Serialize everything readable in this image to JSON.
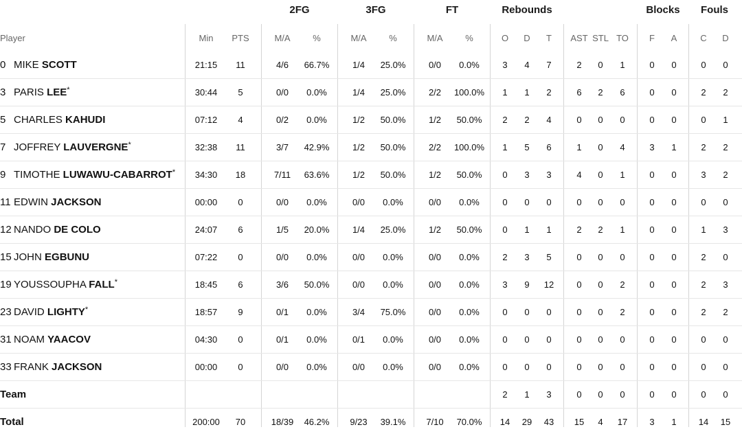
{
  "groups": [
    {
      "key": "fg2",
      "label": "2FG"
    },
    {
      "key": "fg3",
      "label": "3FG"
    },
    {
      "key": "ft",
      "label": "FT"
    },
    {
      "key": "reb",
      "label": "Rebounds"
    },
    {
      "key": "blk",
      "label": "Blocks"
    },
    {
      "key": "fls",
      "label": "Fouls"
    }
  ],
  "columns": [
    "Player",
    "Min",
    "PTS",
    "M/A",
    "%",
    "M/A",
    "%",
    "M/A",
    "%",
    "O",
    "D",
    "T",
    "AST",
    "STL",
    "TO",
    "F",
    "A",
    "C",
    "D"
  ],
  "players": [
    {
      "num": "0",
      "first": "MIKE",
      "last": "SCOTT",
      "star": false,
      "stats": [
        "21:15",
        "11",
        "4/6",
        "66.7%",
        "1/4",
        "25.0%",
        "0/0",
        "0.0%",
        "3",
        "4",
        "7",
        "2",
        "0",
        "1",
        "0",
        "0",
        "0",
        "0"
      ]
    },
    {
      "num": "3",
      "first": "PARIS",
      "last": "LEE",
      "star": true,
      "stats": [
        "30:44",
        "5",
        "0/0",
        "0.0%",
        "1/4",
        "25.0%",
        "2/2",
        "100.0%",
        "1",
        "1",
        "2",
        "6",
        "2",
        "6",
        "0",
        "0",
        "2",
        "2"
      ]
    },
    {
      "num": "5",
      "first": "CHARLES",
      "last": "KAHUDI",
      "star": false,
      "stats": [
        "07:12",
        "4",
        "0/2",
        "0.0%",
        "1/2",
        "50.0%",
        "1/2",
        "50.0%",
        "2",
        "2",
        "4",
        "0",
        "0",
        "0",
        "0",
        "0",
        "0",
        "1"
      ]
    },
    {
      "num": "7",
      "first": "JOFFREY",
      "last": "LAUVERGNE",
      "star": true,
      "stats": [
        "32:38",
        "11",
        "3/7",
        "42.9%",
        "1/2",
        "50.0%",
        "2/2",
        "100.0%",
        "1",
        "5",
        "6",
        "1",
        "0",
        "4",
        "3",
        "1",
        "2",
        "2"
      ]
    },
    {
      "num": "9",
      "first": "TIMOTHE",
      "last": "LUWAWU-CABARROT",
      "star": true,
      "stats": [
        "34:30",
        "18",
        "7/11",
        "63.6%",
        "1/2",
        "50.0%",
        "1/2",
        "50.0%",
        "0",
        "3",
        "3",
        "4",
        "0",
        "1",
        "0",
        "0",
        "3",
        "2"
      ]
    },
    {
      "num": "11",
      "first": "EDWIN",
      "last": "JACKSON",
      "star": false,
      "stats": [
        "00:00",
        "0",
        "0/0",
        "0.0%",
        "0/0",
        "0.0%",
        "0/0",
        "0.0%",
        "0",
        "0",
        "0",
        "0",
        "0",
        "0",
        "0",
        "0",
        "0",
        "0"
      ]
    },
    {
      "num": "12",
      "first": "NANDO",
      "last": "DE COLO",
      "star": false,
      "stats": [
        "24:07",
        "6",
        "1/5",
        "20.0%",
        "1/4",
        "25.0%",
        "1/2",
        "50.0%",
        "0",
        "1",
        "1",
        "2",
        "2",
        "1",
        "0",
        "0",
        "1",
        "3"
      ]
    },
    {
      "num": "15",
      "first": "JOHN",
      "last": "EGBUNU",
      "star": false,
      "stats": [
        "07:22",
        "0",
        "0/0",
        "0.0%",
        "0/0",
        "0.0%",
        "0/0",
        "0.0%",
        "2",
        "3",
        "5",
        "0",
        "0",
        "0",
        "0",
        "0",
        "2",
        "0"
      ]
    },
    {
      "num": "19",
      "first": "YOUSSOUPHA",
      "last": "FALL",
      "star": true,
      "stats": [
        "18:45",
        "6",
        "3/6",
        "50.0%",
        "0/0",
        "0.0%",
        "0/0",
        "0.0%",
        "3",
        "9",
        "12",
        "0",
        "0",
        "2",
        "0",
        "0",
        "2",
        "3"
      ]
    },
    {
      "num": "23",
      "first": "DAVID",
      "last": "LIGHTY",
      "star": true,
      "stats": [
        "18:57",
        "9",
        "0/1",
        "0.0%",
        "3/4",
        "75.0%",
        "0/0",
        "0.0%",
        "0",
        "0",
        "0",
        "0",
        "0",
        "2",
        "0",
        "0",
        "2",
        "2"
      ]
    },
    {
      "num": "31",
      "first": "NOAM",
      "last": "YAACOV",
      "star": false,
      "stats": [
        "04:30",
        "0",
        "0/1",
        "0.0%",
        "0/1",
        "0.0%",
        "0/0",
        "0.0%",
        "0",
        "0",
        "0",
        "0",
        "0",
        "0",
        "0",
        "0",
        "0",
        "0"
      ]
    },
    {
      "num": "33",
      "first": "FRANK",
      "last": "JACKSON",
      "star": false,
      "stats": [
        "00:00",
        "0",
        "0/0",
        "0.0%",
        "0/0",
        "0.0%",
        "0/0",
        "0.0%",
        "0",
        "0",
        "0",
        "0",
        "0",
        "0",
        "0",
        "0",
        "0",
        "0"
      ]
    }
  ],
  "star_mark": "*",
  "team": {
    "label": "Team",
    "stats": [
      "",
      "",
      "",
      "",
      "",
      "",
      "",
      "",
      "2",
      "1",
      "3",
      "0",
      "0",
      "0",
      "0",
      "0",
      "0",
      "0"
    ]
  },
  "total": {
    "label": "Total",
    "stats": [
      "200:00",
      "70",
      "18/39",
      "46.2%",
      "9/23",
      "39.1%",
      "7/10",
      "70.0%",
      "14",
      "29",
      "43",
      "15",
      "4",
      "17",
      "3",
      "1",
      "14",
      "15"
    ]
  }
}
